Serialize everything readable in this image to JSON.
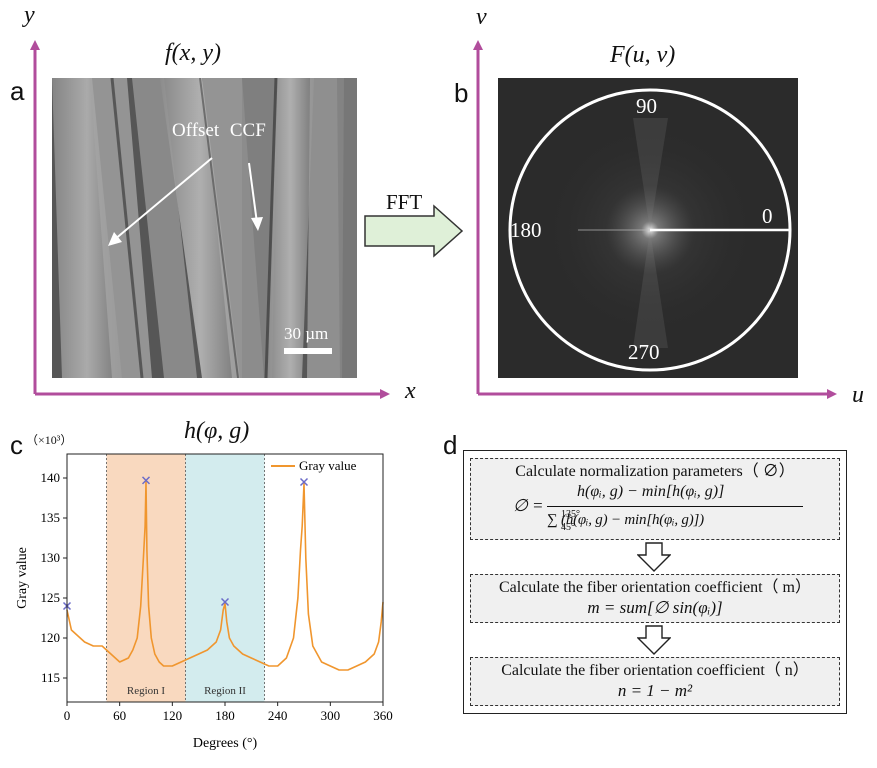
{
  "panel_a": {
    "letter": "a",
    "title": "f(x, y)",
    "axis_x": "x",
    "axis_y": "y",
    "annotation": "Offset CCF",
    "scale_bar": "30 µm"
  },
  "fft_arrow_label": "FFT",
  "panel_b": {
    "letter": "b",
    "title": "F(u, v)",
    "axis_x": "u",
    "axis_y": "v",
    "angle_top": "90",
    "angle_left": "180",
    "angle_right": "0",
    "angle_bottom": "270"
  },
  "panel_c": {
    "letter": "c",
    "title": "h(φ, g)",
    "exponent_label": "（×10³）",
    "region_1": "Region I",
    "region_2": "Region II"
  },
  "chart_data": {
    "type": "line",
    "title": "h(φ, g)",
    "xlabel": "Degrees (°)",
    "ylabel": "Gray value",
    "y_unit": "×10³",
    "xlim": [
      0,
      360
    ],
    "ylim": [
      112,
      143
    ],
    "x_ticks": [
      "0",
      "60",
      "120",
      "180",
      "240",
      "300",
      "360"
    ],
    "y_ticks": [
      "115",
      "120",
      "125",
      "130",
      "135",
      "140"
    ],
    "legend": "Gray value",
    "legend_position": "top-right",
    "regions": [
      {
        "name": "Region I",
        "from": 45,
        "to": 135,
        "color": "#f9d9bf"
      },
      {
        "name": "Region II",
        "from": 135,
        "to": 225,
        "color": "#d3ecee"
      }
    ],
    "series": [
      {
        "name": "Gray value",
        "color": "#f0962e",
        "x": [
          0,
          5,
          10,
          15,
          20,
          30,
          40,
          50,
          60,
          70,
          75,
          80,
          84,
          87,
          89,
          90,
          91,
          93,
          96,
          100,
          105,
          110,
          120,
          130,
          140,
          150,
          160,
          170,
          175,
          178,
          180,
          182,
          185,
          190,
          200,
          210,
          220,
          230,
          240,
          250,
          258,
          263,
          266,
          268,
          270,
          272,
          275,
          280,
          290,
          300,
          310,
          320,
          330,
          340,
          350,
          355,
          358,
          360
        ],
        "values": [
          123.5,
          121,
          120.5,
          120,
          119.5,
          119,
          119,
          118,
          117,
          117.5,
          118.5,
          120,
          124,
          130,
          134,
          139.5,
          131,
          124,
          120,
          118,
          117,
          116.5,
          116.5,
          117,
          117.5,
          118,
          118.5,
          119.5,
          121,
          123.5,
          124.3,
          122,
          120,
          119,
          118,
          117.5,
          117,
          116.5,
          116.5,
          117.5,
          120,
          125,
          131,
          134,
          139.3,
          130,
          123,
          119,
          117,
          116.5,
          116,
          116,
          116.5,
          117,
          118,
          119.5,
          122,
          124.5
        ]
      }
    ],
    "peak_markers": [
      {
        "x": 0,
        "y": 124
      },
      {
        "x": 90,
        "y": 139.7
      },
      {
        "x": 180,
        "y": 124.5
      },
      {
        "x": 270,
        "y": 139.5
      }
    ]
  },
  "panel_d": {
    "letter": "d",
    "step1_title": "Calculate normalization parameters（ ∅）",
    "step1_formula_lhs": "∅ =",
    "step1_numerator": "h(φᵢ, g) − min[h(φᵢ, g)]",
    "step1_denominator": "∑ (h(φᵢ, g) − min[h(φᵢ, g)])",
    "step1_sum_upper": "135°",
    "step1_sum_lower": "45°",
    "step2_title": "Calculate the fiber orientation coefficient（ m）",
    "step2_formula": "m = sum[∅ sin(φᵢ)]",
    "step3_title": "Calculate the fiber orientation coefficient（ n）",
    "step3_formula": "n = 1 − m²"
  }
}
